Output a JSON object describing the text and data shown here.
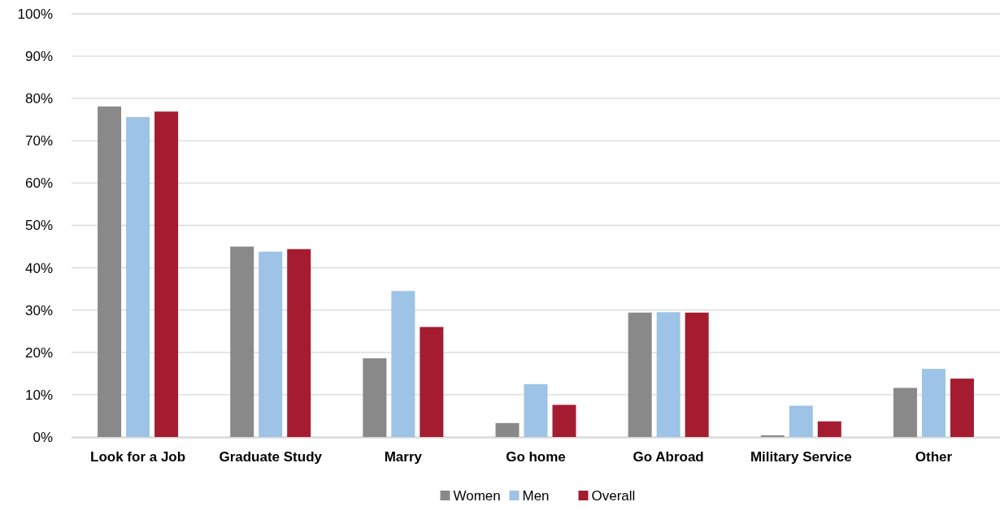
{
  "chart_data": {
    "type": "bar",
    "categories": [
      "Look for a Job",
      "Graduate Study",
      "Marry",
      "Go home",
      "Go Abroad",
      "Military Service",
      "Other"
    ],
    "series": [
      {
        "name": "Women",
        "color": "#898989",
        "values": [
          78.1,
          45.0,
          18.6,
          3.3,
          29.4,
          0.4,
          11.6
        ]
      },
      {
        "name": "Men",
        "color": "#9dc3e6",
        "values": [
          75.6,
          43.8,
          34.5,
          12.5,
          29.5,
          7.4,
          16.1
        ]
      },
      {
        "name": "Overall",
        "color": "#a51c30",
        "values": [
          76.9,
          44.4,
          26.0,
          7.6,
          29.4,
          3.7,
          13.8
        ]
      }
    ],
    "ylim": [
      0,
      100
    ],
    "yticks": [
      {
        "value": 0,
        "label": "0%"
      },
      {
        "value": 10,
        "label": "10%"
      },
      {
        "value": 20,
        "label": "20%"
      },
      {
        "value": 30,
        "label": "30%"
      },
      {
        "value": 40,
        "label": "40%"
      },
      {
        "value": 50,
        "label": "50%"
      },
      {
        "value": 60,
        "label": "60%"
      },
      {
        "value": 70,
        "label": "70%"
      },
      {
        "value": 80,
        "label": "80%"
      },
      {
        "value": 90,
        "label": "90%"
      },
      {
        "value": 100,
        "label": "100%"
      }
    ],
    "grid": "y",
    "legend": "bottom"
  }
}
